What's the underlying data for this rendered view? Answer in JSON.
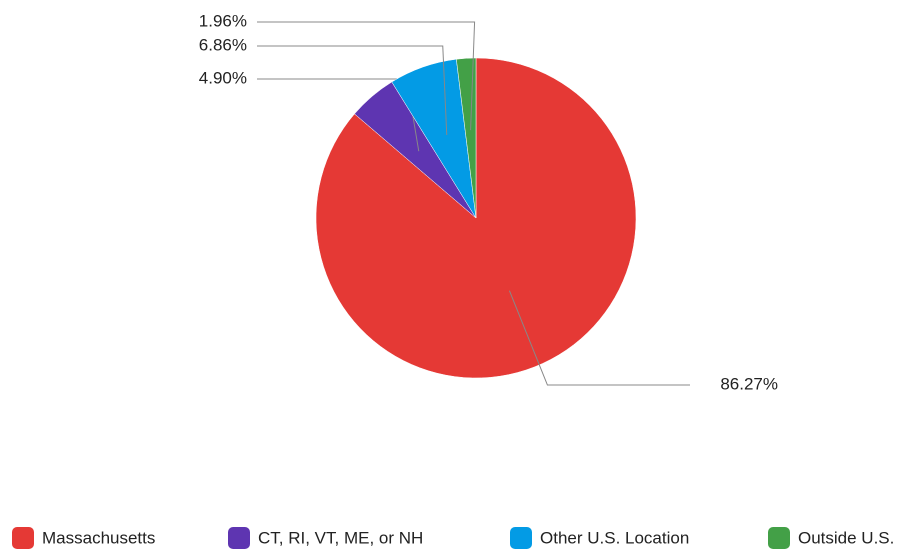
{
  "chart_data": {
    "type": "pie",
    "categories": [
      "Massachusetts",
      "CT, RI, VT, ME, or NH",
      "Other U.S. Location",
      "Outside U.S."
    ],
    "values": [
      86.27,
      4.9,
      6.86,
      1.96
    ],
    "value_labels": [
      "86.27%",
      "4.90%",
      "6.86%",
      "1.96%"
    ],
    "colors": [
      "#e53935",
      "#5e35b1",
      "#039be5",
      "#43a047"
    ],
    "legend": "bottom"
  }
}
